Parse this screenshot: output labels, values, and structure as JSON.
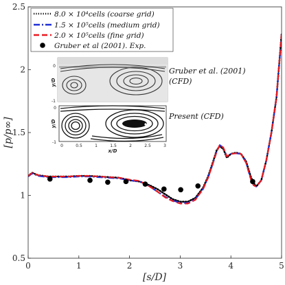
{
  "chart_data": {
    "type": "line",
    "xlabel": "[s/D]",
    "ylabel": "[p/p∞]",
    "xlim": [
      0,
      5
    ],
    "ylim": [
      0.5,
      2.5
    ],
    "xticks": [
      "0",
      "1",
      "2",
      "3",
      "4",
      "5"
    ],
    "yticks": [
      "0.5",
      "1",
      "1.5",
      "2",
      "2.5"
    ],
    "grid": false,
    "legend_position": "top-left",
    "series": [
      {
        "name": "8.0 × 10⁴cells (coarse grid)",
        "style": "dotted",
        "color": "#000000",
        "x": [
          0,
          0.08,
          0.2,
          0.4,
          0.6,
          0.8,
          1.0,
          1.2,
          1.4,
          1.6,
          1.8,
          2.0,
          2.2,
          2.4,
          2.55,
          2.7,
          2.85,
          3.0,
          3.15,
          3.3,
          3.45,
          3.55,
          3.65,
          3.72,
          3.78,
          3.85,
          3.92,
          4.0,
          4.1,
          4.2,
          4.3,
          4.4,
          4.45,
          4.5,
          4.6,
          4.7,
          4.8,
          4.9,
          5.0
        ],
        "y": [
          1.155,
          1.18,
          1.16,
          1.15,
          1.15,
          1.15,
          1.155,
          1.155,
          1.15,
          1.145,
          1.14,
          1.12,
          1.11,
          1.08,
          1.05,
          1.01,
          0.97,
          0.95,
          0.95,
          0.98,
          1.06,
          1.15,
          1.27,
          1.36,
          1.39,
          1.37,
          1.3,
          1.33,
          1.34,
          1.33,
          1.27,
          1.14,
          1.1,
          1.07,
          1.12,
          1.28,
          1.5,
          1.78,
          2.28
        ]
      },
      {
        "name": "1.5 × 10⁵cells (medium grid)",
        "style": "dashdot",
        "color": "#1f2fd6",
        "x": [
          0,
          0.08,
          0.2,
          0.4,
          0.6,
          0.8,
          1.0,
          1.2,
          1.4,
          1.6,
          1.8,
          2.0,
          2.2,
          2.4,
          2.55,
          2.7,
          2.85,
          3.0,
          3.15,
          3.3,
          3.45,
          3.55,
          3.65,
          3.72,
          3.78,
          3.85,
          3.92,
          4.0,
          4.1,
          4.2,
          4.3,
          4.4,
          4.45,
          4.5,
          4.6,
          4.7,
          4.8,
          4.9,
          5.0
        ],
        "y": [
          1.15,
          1.175,
          1.155,
          1.145,
          1.145,
          1.145,
          1.15,
          1.15,
          1.145,
          1.14,
          1.135,
          1.12,
          1.11,
          1.07,
          1.03,
          0.99,
          0.96,
          0.94,
          0.94,
          0.97,
          1.05,
          1.14,
          1.26,
          1.35,
          1.4,
          1.38,
          1.31,
          1.33,
          1.335,
          1.33,
          1.26,
          1.12,
          1.08,
          1.07,
          1.12,
          1.28,
          1.5,
          1.78,
          2.28
        ]
      },
      {
        "name": "2.0 × 10⁵cells (fine grid)",
        "style": "dashed",
        "color": "#e8191f",
        "x": [
          0,
          0.08,
          0.2,
          0.4,
          0.6,
          0.8,
          1.0,
          1.2,
          1.4,
          1.6,
          1.8,
          2.0,
          2.2,
          2.4,
          2.55,
          2.7,
          2.85,
          3.0,
          3.15,
          3.3,
          3.45,
          3.55,
          3.65,
          3.72,
          3.78,
          3.85,
          3.92,
          4.0,
          4.1,
          4.2,
          4.3,
          4.4,
          4.45,
          4.5,
          4.6,
          4.7,
          4.8,
          4.9,
          5.0
        ],
        "y": [
          1.155,
          1.18,
          1.16,
          1.15,
          1.15,
          1.15,
          1.155,
          1.155,
          1.15,
          1.145,
          1.14,
          1.125,
          1.115,
          1.07,
          1.03,
          0.985,
          0.955,
          0.935,
          0.935,
          0.965,
          1.05,
          1.14,
          1.26,
          1.35,
          1.4,
          1.38,
          1.31,
          1.33,
          1.335,
          1.33,
          1.26,
          1.12,
          1.08,
          1.07,
          1.12,
          1.28,
          1.5,
          1.78,
          2.28
        ]
      },
      {
        "name": "Gruber et al (2001). Exp.",
        "style": "markers",
        "color": "#000000",
        "x": [
          0.43,
          1.22,
          1.57,
          1.93,
          2.31,
          2.68,
          3.01,
          3.35,
          4.43
        ],
        "y": [
          1.13,
          1.12,
          1.105,
          1.11,
          1.09,
          1.05,
          1.045,
          1.075,
          1.11
        ]
      }
    ],
    "inset": {
      "top_label": "Gruber et al. (2001)",
      "top_label_2": "(CFD)",
      "bottom_label": "Present (CFD)",
      "ylabel": "y/D",
      "xlabel": "x/D",
      "y_tick_zero": "0",
      "y_tick_neg": "-1",
      "x_ticks": [
        "0",
        "0.5",
        "1",
        "1.5",
        "2",
        "2.5",
        "3"
      ]
    }
  }
}
